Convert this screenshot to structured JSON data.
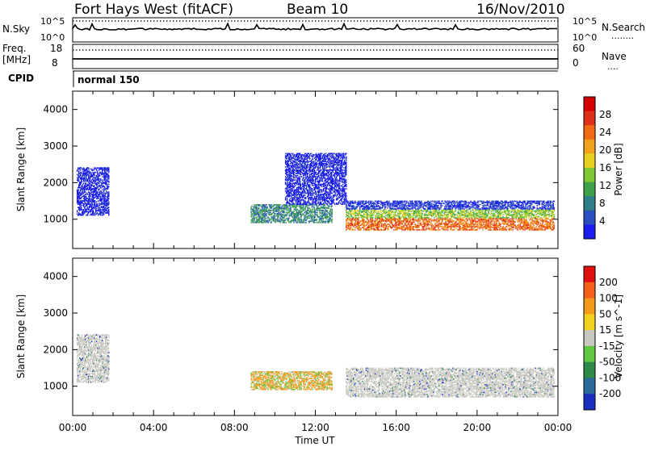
{
  "header": {
    "station": "Fort Hays West (fitACF)",
    "beam": "Beam 10",
    "date": "16/Nov/2010"
  },
  "top_panels": {
    "nsky": {
      "label": "N.Sky",
      "tick_top": "10^5",
      "tick_bottom": "10^0"
    },
    "nsearch": {
      "label": "N.Search",
      "tick_top": "10^5",
      "tick_bottom": "10^0",
      "legend_line": "........"
    },
    "freq": {
      "label": "Freq.",
      "unit": "[MHz]",
      "tick_top": "18",
      "tick_bottom": "8"
    },
    "nave": {
      "label": "Nave",
      "tick_top": "60",
      "tick_bottom": "0",
      "legend_line": "...."
    },
    "cpid": {
      "label": "CPID",
      "mode": "normal 150"
    }
  },
  "chart_data": [
    {
      "type": "heatmap",
      "name": "power-panel",
      "ylabel": "Slant Range [km]",
      "xlabel": "",
      "ylim": [
        200,
        4500
      ],
      "yticks": [
        "1000",
        "2000",
        "3000",
        "4000"
      ],
      "xlim_hours": [
        0,
        24
      ],
      "colorbar": {
        "label": "Power [dB]",
        "ticks": [
          "4",
          "8",
          "12",
          "16",
          "20",
          "24",
          "28"
        ],
        "colors": [
          "#1c1cf0",
          "#2a4fbf",
          "#2f7f8a",
          "#3fa24a",
          "#7fc832",
          "#e6d21e",
          "#f2a21a",
          "#f26a14",
          "#e0301a",
          "#d40000"
        ]
      },
      "features": [
        {
          "t_start": 0.2,
          "t_end": 1.8,
          "range_low": 1100,
          "range_high": 2400,
          "dominant": "blue"
        },
        {
          "t_start": 8.8,
          "t_end": 12.8,
          "range_low": 900,
          "range_high": 1400,
          "dominant": "green"
        },
        {
          "t_start": 13.5,
          "t_end": 23.8,
          "range_low": 700,
          "range_high": 1500,
          "dominant": "orange"
        },
        {
          "t_start": 10.5,
          "t_end": 13.5,
          "range_low": 1400,
          "range_high": 2800,
          "dominant": "blue"
        }
      ]
    },
    {
      "type": "heatmap",
      "name": "velocity-panel",
      "ylabel": "Slant Range [km]",
      "xlabel": "Time UT",
      "ylim": [
        200,
        4500
      ],
      "yticks": [
        "1000",
        "2000",
        "3000",
        "4000"
      ],
      "xlim_hours": [
        0,
        24
      ],
      "xticks": [
        "00:00",
        "04:00",
        "08:00",
        "12:00",
        "16:00",
        "20:00",
        "00:00"
      ],
      "colorbar": {
        "label": "Velocity [m s^-1]",
        "ticks": [
          "200",
          "100",
          "50",
          "15",
          "-15",
          "-50",
          "-100",
          "-200"
        ],
        "colors": [
          "#1a2fbf",
          "#2b6a9a",
          "#2f8a4a",
          "#5fc83f",
          "#c8c8c0",
          "#f2d21e",
          "#f29a1a",
          "#f2601a",
          "#e01010"
        ]
      },
      "features": [
        {
          "t_start": 0.2,
          "t_end": 1.8,
          "range_low": 1100,
          "range_high": 2400,
          "dominant": "grey"
        },
        {
          "t_start": 8.8,
          "t_end": 12.8,
          "range_low": 900,
          "range_high": 1400,
          "dominant": "orange"
        },
        {
          "t_start": 13.5,
          "t_end": 23.8,
          "range_low": 700,
          "range_high": 1500,
          "dominant": "grey"
        }
      ]
    }
  ]
}
